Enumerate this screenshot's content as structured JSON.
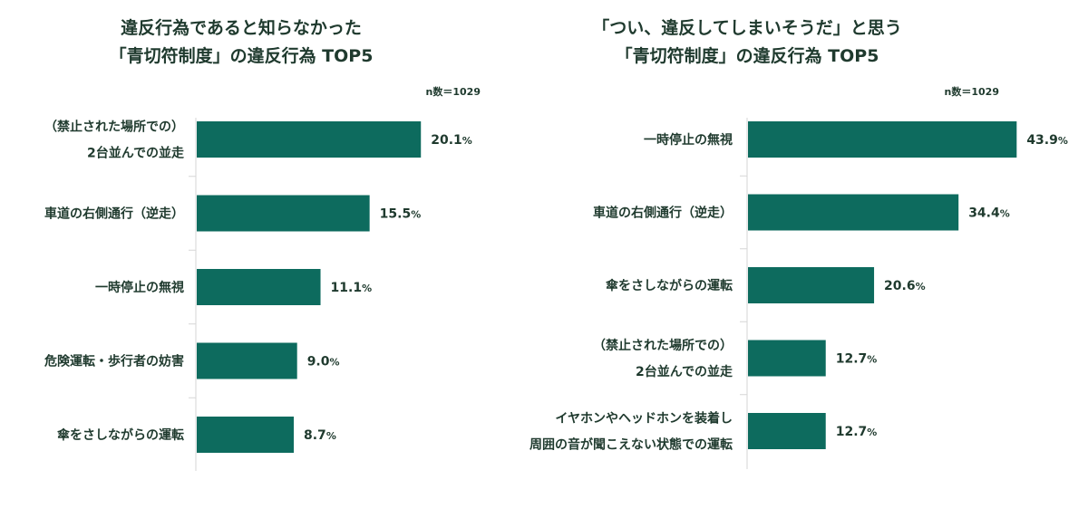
{
  "colors": {
    "bar": "#0d6b5e",
    "text": "#1f3a2e",
    "axis": "#d6d6d6"
  },
  "chart_data": [
    {
      "type": "bar",
      "orientation": "horizontal",
      "title_lines": [
        "違反行為であると知らなかった",
        "「青切符制度」の違反行為 TOP5"
      ],
      "sample_note": "n数＝1029",
      "unit": "%",
      "xlim": [
        0,
        50
      ],
      "categories": [
        [
          "（禁止された場所での）",
          "2台並んでの並走"
        ],
        [
          "車道の右側通行（逆走）"
        ],
        [
          "一時停止の無視"
        ],
        [
          "危険運転・歩行者の妨害"
        ],
        [
          "傘をさしながらの運転"
        ]
      ],
      "values": [
        20.1,
        15.5,
        11.1,
        9.0,
        8.7
      ],
      "value_labels": [
        "20.1",
        "15.5",
        "11.1",
        "9.0",
        "8.7"
      ]
    },
    {
      "type": "bar",
      "orientation": "horizontal",
      "title_lines": [
        "「つい、違反してしまいそうだ」と思う",
        "「青切符制度」の違反行為 TOP5"
      ],
      "sample_note": "n数＝1029",
      "unit": "%",
      "xlim": [
        0,
        50
      ],
      "categories": [
        [
          "一時停止の無視"
        ],
        [
          "車道の右側通行（逆走）"
        ],
        [
          "傘をさしながらの運転"
        ],
        [
          "（禁止された場所での）",
          "2台並んでの並走"
        ],
        [
          "イヤホンやヘッドホンを装着し",
          "周囲の音が聞こえない状態での運転"
        ]
      ],
      "values": [
        43.9,
        34.4,
        20.6,
        12.7,
        12.7
      ],
      "value_labels": [
        "43.9",
        "34.4",
        "20.6",
        "12.7",
        "12.7"
      ]
    }
  ]
}
